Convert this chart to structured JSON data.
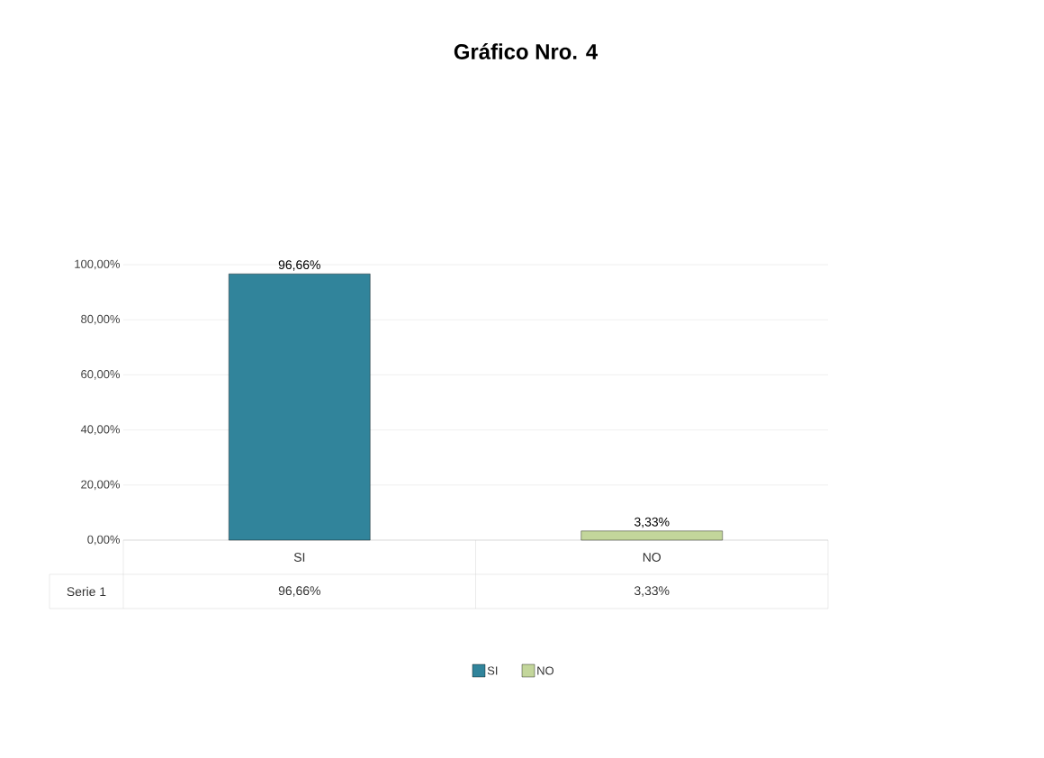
{
  "chart_data": {
    "type": "bar",
    "title": "Gráfico Nro. 4",
    "categories": [
      "SI",
      "NO"
    ],
    "series": [
      {
        "name": "Serie 1",
        "values": [
          96.66,
          3.33
        ],
        "colors": [
          "#31849b",
          "#c3d69b"
        ],
        "value_labels": [
          "96,66%",
          "3,33%"
        ]
      }
    ],
    "ylim": [
      0,
      100
    ],
    "yticks": [
      {
        "value": 0,
        "label": "0,00%"
      },
      {
        "value": 20,
        "label": "20,00%"
      },
      {
        "value": 40,
        "label": "40,00%"
      },
      {
        "value": 60,
        "label": "60,00%"
      },
      {
        "value": 80,
        "label": "80,00%"
      },
      {
        "value": 100,
        "label": "100,00%"
      }
    ],
    "grid": "y",
    "legend": "bottom"
  }
}
